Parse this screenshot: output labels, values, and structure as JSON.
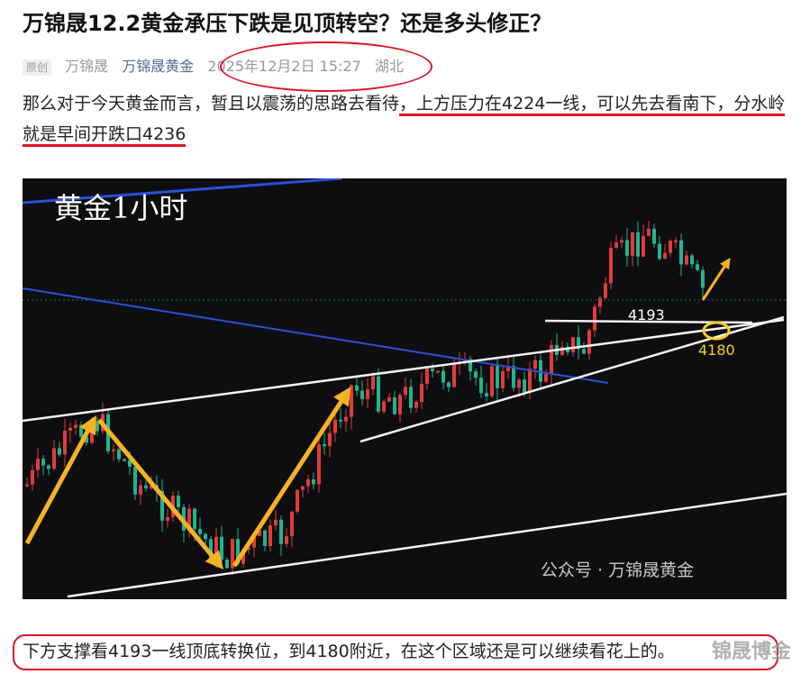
{
  "article": {
    "title": "万锦晟12.2黄金承压下跌是见顶转空？还是多头修正？",
    "meta": {
      "badge": "原创",
      "author": "万锦晟",
      "account": "万锦晟黄金",
      "datetime": "2025年12月2日 15:27",
      "location": "湖北"
    },
    "paragraph_1": {
      "plain": "那么对于今天黄金而言，暂且以震荡的思路去看待",
      "underlined": "，上方压力在4224一线，可以先去看南下，分水岭就是早间开跌口4236"
    },
    "image": {
      "title": "黄金1小时",
      "label_upper": "4193",
      "label_lower": "4180",
      "watermark": "公众号 · 万锦晟黄金"
    },
    "paragraph_2": "下方支撑看4193一线顶底转换位，到4180附近，在这个区域还是可以继续看花上的。",
    "corner_watermark": "锦晟博金"
  }
}
